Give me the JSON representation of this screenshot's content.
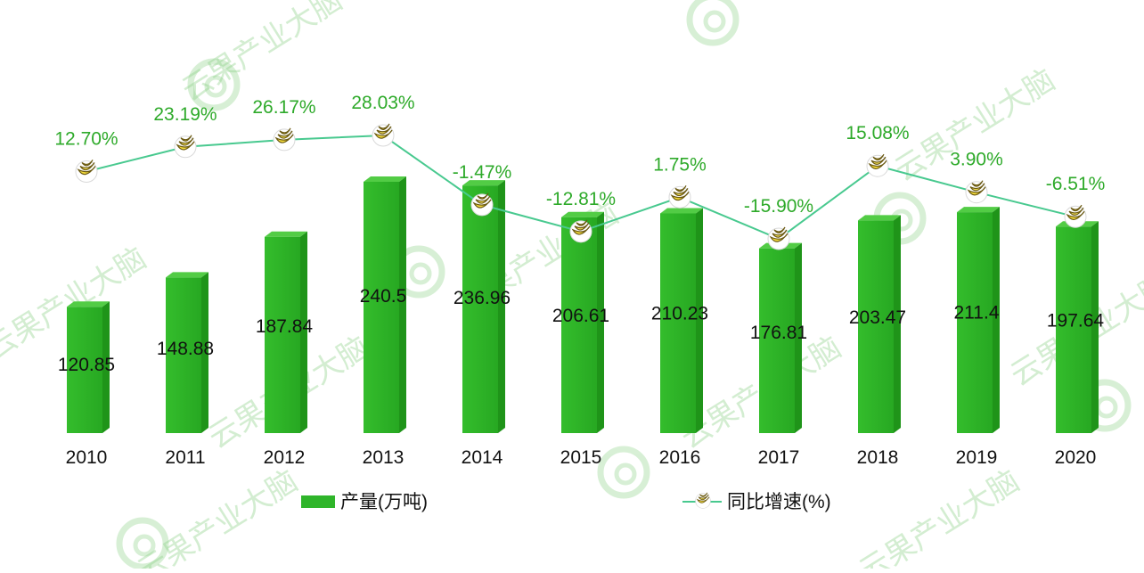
{
  "chart_data": {
    "type": "bar",
    "categories": [
      "2010",
      "2011",
      "2012",
      "2013",
      "2014",
      "2015",
      "2016",
      "2017",
      "2018",
      "2019",
      "2020"
    ],
    "series": [
      {
        "name": "产量(万吨)",
        "type": "bar",
        "values": [
          120.85,
          148.88,
          187.84,
          240.5,
          236.96,
          206.61,
          210.23,
          176.81,
          203.47,
          211.4,
          197.64
        ],
        "labels": [
          "120.85",
          "148.88",
          "187.84",
          "240.5",
          "236.96",
          "206.61",
          "210.23",
          "176.81",
          "203.47",
          "211.4",
          "197.64"
        ],
        "color": "#2fb52a"
      },
      {
        "name": "同比增速(%)",
        "type": "line",
        "values": [
          12.7,
          23.19,
          26.17,
          28.03,
          -1.47,
          -12.81,
          1.75,
          -15.9,
          15.08,
          3.9,
          -6.51
        ],
        "labels": [
          "12.70%",
          "23.19%",
          "26.17%",
          "28.03%",
          "-1.47%",
          "-12.81%",
          "1.75%",
          "-15.90%",
          "15.08%",
          "3.90%",
          "-6.51%"
        ],
        "color": "#48c98f",
        "marker": "banana-icon"
      }
    ],
    "title": "",
    "xlabel": "",
    "ylabel": "",
    "ylim": [
      0,
      260
    ],
    "y2lim": [
      -60,
      40
    ],
    "grid": false,
    "legend": "bottom",
    "watermark": "云果产业大脑"
  }
}
